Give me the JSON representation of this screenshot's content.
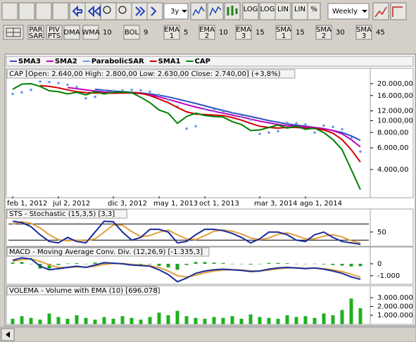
{
  "toolbar": {
    "period": "3y",
    "interval": "Weekly",
    "scale_buttons": [
      "LOG",
      "LOG",
      "LIN",
      "LIN",
      "%"
    ],
    "indicators": [
      {
        "label": [
          "PAR",
          "SAR"
        ]
      },
      {
        "label": [
          "PIV",
          "PTS"
        ]
      },
      {
        "label": [
          "DMA"
        ]
      },
      {
        "label": [
          "WMA"
        ],
        "value": 10
      },
      {
        "label": [
          "BOL"
        ],
        "value": 9
      },
      {
        "label": [
          "EMA",
          "1"
        ],
        "value": 5
      },
      {
        "label": [
          "EMA",
          "2"
        ],
        "value": 10
      },
      {
        "label": [
          "EMA",
          "3"
        ],
        "value": 15
      },
      {
        "label": [
          "SMA",
          "1"
        ],
        "value": 15
      },
      {
        "label": [
          "SMA",
          "2"
        ],
        "value": 30
      },
      {
        "label": [
          "SMA",
          "3"
        ],
        "value": 45
      }
    ]
  },
  "chart_data": [
    {
      "type": "line",
      "title": "CAP [Open: 2.640,00  High: 2.800,00  Low: 2.630,00  Close: 2.740,00] (+3,8%)",
      "log": true,
      "categories": [
        "feb 1, 2012",
        null,
        null,
        null,
        null,
        "jul 2, 2012",
        null,
        null,
        null,
        null,
        null,
        "dic 3, 2012",
        null,
        null,
        null,
        null,
        "may 1, 2013",
        null,
        null,
        null,
        null,
        "oct 1, 2013",
        null,
        null,
        null,
        null,
        null,
        "mar 3, 2014",
        null,
        null,
        null,
        null,
        "ago 1, 2014",
        null,
        null,
        null,
        null,
        null,
        null
      ],
      "ylim": [
        2450,
        21900
      ],
      "yticks": [
        {
          "value": 20000,
          "label": "20.000,00"
        },
        {
          "value": 16000,
          "label": "16.000,00"
        },
        {
          "value": 12000,
          "label": "12.000,00"
        },
        {
          "value": 10000,
          "label": "10.000,00"
        },
        {
          "value": 8000,
          "label": "8.000,00"
        },
        {
          "value": 6000,
          "label": "6.000,00"
        },
        {
          "value": 4000,
          "label": "4.000,00"
        }
      ],
      "series": [
        {
          "name": "SMA3",
          "color": "#3050c0",
          "values": [
            null,
            null,
            null,
            null,
            null,
            null,
            null,
            null,
            null,
            18000,
            17700,
            17400,
            17200,
            17000,
            16800,
            16500,
            16100,
            15600,
            15000,
            14400,
            13800,
            13200,
            12600,
            12100,
            11600,
            11200,
            10800,
            10400,
            10000,
            9700,
            9400,
            9200,
            9000,
            8800,
            8600,
            8300,
            8000,
            7500,
            6900
          ]
        },
        {
          "name": "SMA2",
          "color": "#c000c0",
          "values": [
            null,
            null,
            null,
            null,
            null,
            null,
            18600,
            18200,
            17800,
            17400,
            17100,
            16900,
            16800,
            16800,
            16600,
            16200,
            15600,
            14900,
            14200,
            13500,
            12900,
            12400,
            11900,
            11500,
            11100,
            10700,
            10300,
            9900,
            9600,
            9300,
            9100,
            9000,
            8900,
            8800,
            8600,
            8300,
            7800,
            7000,
            6100
          ]
        },
        {
          "name": "ParabolicSAR",
          "color": "#6a9ae8",
          "marker": "dot",
          "values": [
            16500,
            17000,
            17800,
            20800,
            20600,
            20200,
            19600,
            18800,
            15200,
            15600,
            17600,
            17500,
            17600,
            17800,
            17600,
            17200,
            16200,
            14800,
            13000,
            8600,
            9000,
            12400,
            12100,
            11800,
            11400,
            10800,
            10200,
            7800,
            8000,
            8200,
            9600,
            9500,
            9300,
            8000,
            9100,
            8900,
            8500,
            7200,
            5600
          ]
        },
        {
          "name": "SMA1",
          "color": "#d00000",
          "values": [
            null,
            null,
            null,
            19300,
            19000,
            18500,
            17800,
            17200,
            16900,
            16800,
            16800,
            16700,
            16800,
            16900,
            16700,
            16000,
            15000,
            14000,
            12800,
            11800,
            11300,
            11200,
            11100,
            11000,
            10600,
            10100,
            9500,
            9000,
            8800,
            8700,
            8800,
            8800,
            8700,
            8600,
            8400,
            7900,
            7000,
            5800,
            4600
          ]
        },
        {
          "name": "CAP",
          "color": "#008000",
          "values": [
            18000,
            19800,
            20000,
            19000,
            17500,
            17200,
            16500,
            17000,
            16200,
            17200,
            16500,
            17000,
            17100,
            16900,
            15500,
            14000,
            12200,
            11500,
            9500,
            10800,
            11500,
            11000,
            10800,
            10700,
            9800,
            9300,
            8300,
            8400,
            8800,
            9200,
            8700,
            9000,
            8500,
            8700,
            8000,
            7000,
            5800,
            4000,
            2740
          ]
        }
      ]
    },
    {
      "type": "line",
      "title": "STS - Stochastic (15,3,5) [3,3]",
      "ylim": [
        0,
        100
      ],
      "yticks": [
        50
      ],
      "levels": [
        20,
        80
      ],
      "series": [
        {
          "color": "#e0a040",
          "values": [
            80,
            88,
            82,
            65,
            40,
            22,
            18,
            20,
            18,
            25,
            50,
            76,
            75,
            52,
            33,
            37,
            50,
            57,
            40,
            25,
            22,
            37,
            53,
            58,
            53,
            43,
            28,
            22,
            28,
            42,
            47,
            37,
            25,
            25,
            35,
            40,
            32,
            18,
            10
          ]
        },
        {
          "color": "#1a2a9a",
          "values": [
            90,
            85,
            70,
            40,
            15,
            10,
            30,
            15,
            10,
            50,
            90,
            88,
            50,
            20,
            30,
            60,
            60,
            50,
            10,
            15,
            40,
            60,
            60,
            55,
            45,
            30,
            10,
            25,
            50,
            50,
            40,
            20,
            15,
            40,
            50,
            30,
            15,
            10,
            5
          ]
        }
      ]
    },
    {
      "type": "line",
      "title": "MACD - Moving Average Conv. Div. (12,26,9) [-1.335,3]",
      "ylim": [
        -1600,
        760
      ],
      "yticks": [
        0,
        {
          "value": -1000,
          "label": "-1.000"
        }
      ],
      "series": [
        {
          "type": "bar",
          "color": "#20a020",
          "values": [
            100,
            150,
            -20,
            -400,
            -400,
            -100,
            20,
            60,
            -20,
            100,
            150,
            30,
            -20,
            -60,
            -50,
            -40,
            -180,
            -300,
            -500,
            -100,
            150,
            150,
            100,
            70,
            0,
            -30,
            -60,
            0,
            70,
            70,
            50,
            -10,
            -30,
            10,
            -50,
            -100,
            -150,
            -220,
            -200
          ]
        },
        {
          "color": "#e0a040",
          "values": [
            200,
            350,
            420,
            200,
            -100,
            -300,
            -320,
            -260,
            -280,
            -200,
            -50,
            20,
            20,
            -40,
            -100,
            -160,
            -320,
            -600,
            -1000,
            -1100,
            -950,
            -750,
            -600,
            -520,
            -500,
            -520,
            -590,
            -600,
            -520,
            -420,
            -350,
            -340,
            -370,
            -360,
            -400,
            -500,
            -650,
            -880,
            -1100
          ]
        },
        {
          "color": "#1a2a9a",
          "values": [
            300,
            500,
            400,
            -200,
            -500,
            -400,
            -300,
            -200,
            -300,
            -100,
            100,
            50,
            0,
            -100,
            -150,
            -200,
            -500,
            -900,
            -1500,
            -1200,
            -800,
            -600,
            -500,
            -450,
            -500,
            -550,
            -650,
            -600,
            -450,
            -350,
            -300,
            -350,
            -400,
            -350,
            -450,
            -600,
            -800,
            -1100,
            -1300
          ]
        }
      ]
    },
    {
      "type": "bar",
      "title": "VOLEMA - Volume with EMA (10) [696.078]",
      "ylim": [
        0,
        3800000
      ],
      "yticks": [
        {
          "value": 3000000,
          "label": "3.000.000"
        },
        {
          "value": 2000000,
          "label": "2.000.000"
        },
        {
          "value": 1000000,
          "label": "1.000.000"
        }
      ],
      "color": "#20b020",
      "values": [
        600000,
        900000,
        700000,
        500000,
        1200000,
        800000,
        600000,
        1000000,
        700000,
        500000,
        800000,
        600000,
        900000,
        700000,
        500000,
        800000,
        1300000,
        1000000,
        1500000,
        900000,
        700000,
        600000,
        800000,
        700000,
        900000,
        600000,
        1100000,
        800000,
        700000,
        600000,
        1000000,
        800000,
        900000,
        700000,
        1200000,
        1000000,
        1600000,
        2900000,
        1800000
      ]
    }
  ]
}
